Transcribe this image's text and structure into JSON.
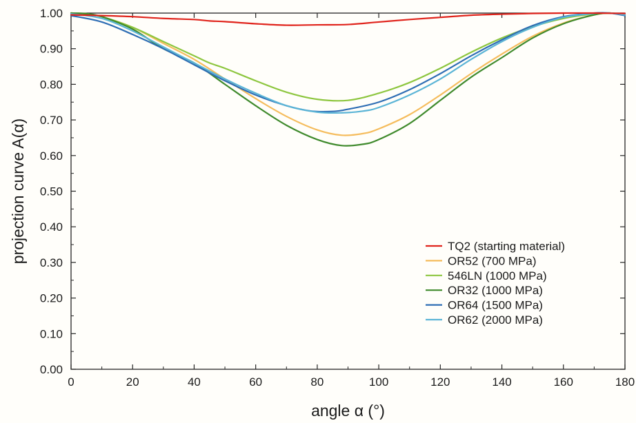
{
  "chart_data": {
    "type": "line",
    "title": "",
    "xlabel": "angle α (°)",
    "ylabel": "projection curve A(α)",
    "xlim": [
      0,
      180
    ],
    "ylim": [
      0,
      1
    ],
    "x_ticks": [
      "0",
      "20",
      "40",
      "60",
      "80",
      "100",
      "120",
      "140",
      "160",
      "180"
    ],
    "y_ticks": [
      "0.00",
      "0.10",
      "0.20",
      "0.30",
      "0.40",
      "0.50",
      "0.60",
      "0.70",
      "0.80",
      "0.90",
      "1.00"
    ],
    "grid": false,
    "legend_position": "lower-right",
    "series": [
      {
        "name": "TQ2 (starting material)",
        "color": "#e0231b",
        "points": [
          [
            0,
            0.995
          ],
          [
            10,
            0.993
          ],
          [
            20,
            0.99
          ],
          [
            30,
            0.985
          ],
          [
            40,
            0.982
          ],
          [
            45,
            0.978
          ],
          [
            50,
            0.976
          ],
          [
            60,
            0.97
          ],
          [
            70,
            0.966
          ],
          [
            80,
            0.967
          ],
          [
            90,
            0.968
          ],
          [
            100,
            0.975
          ],
          [
            110,
            0.982
          ],
          [
            120,
            0.988
          ],
          [
            130,
            0.994
          ],
          [
            140,
            0.997
          ],
          [
            150,
            0.999
          ],
          [
            160,
            1.0
          ],
          [
            170,
            1.0
          ],
          [
            180,
            0.999
          ]
        ]
      },
      {
        "name": "OR52 (700 MPa)",
        "color": "#f5bc5c",
        "points": [
          [
            0,
            1.0
          ],
          [
            5,
            0.998
          ],
          [
            10,
            0.99
          ],
          [
            20,
            0.96
          ],
          [
            30,
            0.915
          ],
          [
            40,
            0.87
          ],
          [
            50,
            0.815
          ],
          [
            60,
            0.76
          ],
          [
            70,
            0.71
          ],
          [
            80,
            0.672
          ],
          [
            88,
            0.657
          ],
          [
            95,
            0.662
          ],
          [
            100,
            0.675
          ],
          [
            110,
            0.715
          ],
          [
            120,
            0.77
          ],
          [
            130,
            0.83
          ],
          [
            140,
            0.885
          ],
          [
            150,
            0.935
          ],
          [
            160,
            0.972
          ],
          [
            170,
            0.995
          ],
          [
            175,
            1.0
          ],
          [
            180,
            0.995
          ]
        ]
      },
      {
        "name": "546LN (1000 MPa)",
        "color": "#8dc63f",
        "points": [
          [
            0,
            1.0
          ],
          [
            5,
            0.998
          ],
          [
            10,
            0.99
          ],
          [
            20,
            0.96
          ],
          [
            30,
            0.92
          ],
          [
            40,
            0.88
          ],
          [
            45,
            0.86
          ],
          [
            50,
            0.845
          ],
          [
            60,
            0.81
          ],
          [
            70,
            0.778
          ],
          [
            80,
            0.758
          ],
          [
            90,
            0.755
          ],
          [
            100,
            0.775
          ],
          [
            110,
            0.805
          ],
          [
            120,
            0.845
          ],
          [
            130,
            0.89
          ],
          [
            140,
            0.93
          ],
          [
            150,
            0.962
          ],
          [
            160,
            0.985
          ],
          [
            170,
            0.998
          ],
          [
            175,
            1.0
          ],
          [
            180,
            0.995
          ]
        ]
      },
      {
        "name": "OR32 (1000 MPa)",
        "color": "#3f8a2c",
        "points": [
          [
            0,
            1.0
          ],
          [
            5,
            0.998
          ],
          [
            10,
            0.99
          ],
          [
            20,
            0.955
          ],
          [
            30,
            0.9
          ],
          [
            40,
            0.86
          ],
          [
            50,
            0.8
          ],
          [
            60,
            0.74
          ],
          [
            70,
            0.685
          ],
          [
            80,
            0.645
          ],
          [
            88,
            0.628
          ],
          [
            95,
            0.632
          ],
          [
            100,
            0.645
          ],
          [
            110,
            0.69
          ],
          [
            120,
            0.755
          ],
          [
            130,
            0.82
          ],
          [
            140,
            0.875
          ],
          [
            150,
            0.93
          ],
          [
            160,
            0.97
          ],
          [
            170,
            0.995
          ],
          [
            175,
            1.0
          ],
          [
            180,
            0.995
          ]
        ]
      },
      {
        "name": "OR64 (1500 MPa)",
        "color": "#2e6db4",
        "points": [
          [
            0,
            0.993
          ],
          [
            10,
            0.975
          ],
          [
            20,
            0.94
          ],
          [
            30,
            0.9
          ],
          [
            40,
            0.855
          ],
          [
            50,
            0.81
          ],
          [
            60,
            0.77
          ],
          [
            70,
            0.74
          ],
          [
            78,
            0.725
          ],
          [
            85,
            0.724
          ],
          [
            90,
            0.73
          ],
          [
            100,
            0.75
          ],
          [
            110,
            0.785
          ],
          [
            120,
            0.83
          ],
          [
            130,
            0.88
          ],
          [
            140,
            0.925
          ],
          [
            150,
            0.965
          ],
          [
            160,
            0.99
          ],
          [
            170,
            1.0
          ],
          [
            175,
            1.0
          ],
          [
            180,
            0.993
          ]
        ]
      },
      {
        "name": "OR62 (2000 MPa)",
        "color": "#5ab4d6",
        "points": [
          [
            0,
            0.998
          ],
          [
            10,
            0.985
          ],
          [
            20,
            0.95
          ],
          [
            30,
            0.905
          ],
          [
            40,
            0.86
          ],
          [
            50,
            0.815
          ],
          [
            60,
            0.775
          ],
          [
            70,
            0.74
          ],
          [
            80,
            0.722
          ],
          [
            88,
            0.72
          ],
          [
            95,
            0.725
          ],
          [
            100,
            0.735
          ],
          [
            110,
            0.77
          ],
          [
            120,
            0.815
          ],
          [
            130,
            0.87
          ],
          [
            140,
            0.92
          ],
          [
            150,
            0.96
          ],
          [
            160,
            0.988
          ],
          [
            170,
            0.999
          ],
          [
            175,
            1.0
          ],
          [
            180,
            0.995
          ]
        ]
      }
    ]
  }
}
